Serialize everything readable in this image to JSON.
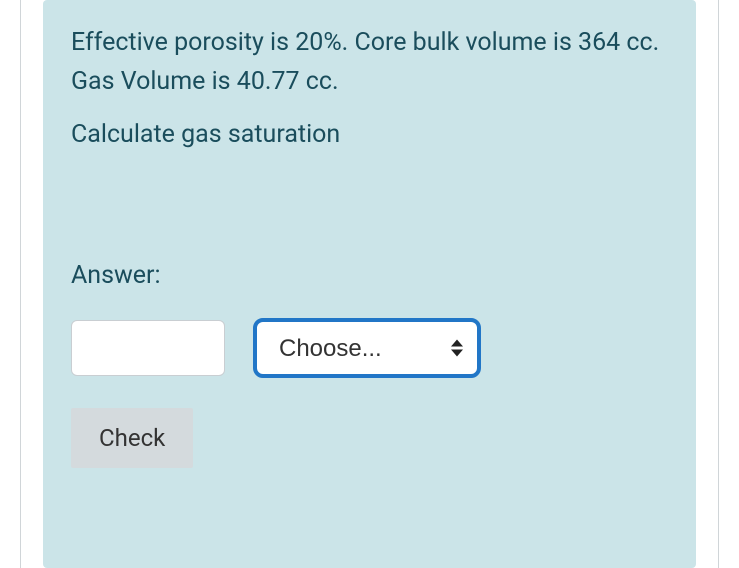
{
  "panel": {
    "background_color": "#cbe4e8",
    "text_color": "#1a4d5c",
    "font_size": 25
  },
  "question": {
    "context": "Effective porosity is 20%. Core bulk volume is 364 cc. Gas Volume is 40.77 cc.",
    "instruction": "Calculate gas saturation"
  },
  "answer": {
    "label": "Answer:",
    "input_value": "",
    "input_placeholder": "",
    "dropdown_placeholder": "Choose...",
    "dropdown_border_color": "#2176c7"
  },
  "buttons": {
    "check_label": "Check",
    "check_background": "#d4dadd"
  }
}
